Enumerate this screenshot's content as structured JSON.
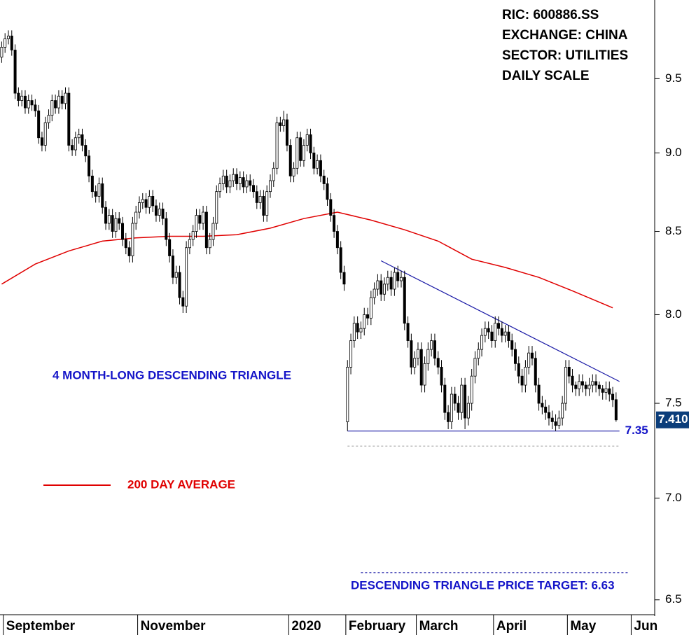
{
  "chart_data": {
    "type": "candlestick",
    "info": [
      "RIC: 600886.SS",
      "EXCHANGE: CHINA",
      "SECTOR: UTILITIES",
      "DAILY SCALE"
    ],
    "annotations": [
      "4 MONTH-LONG DESCENDING TRIANGLE",
      "DESCENDING TRIANGLE PRICE TARGET: 6.63"
    ],
    "log_scale": true,
    "ylim": [
      6.43,
      10.06
    ],
    "yticks": [
      6.5,
      {
        "value": 7,
        "label": "7.0"
      },
      7.5,
      {
        "value": 8,
        "label": "8.0"
      },
      8.5,
      {
        "value": 9,
        "label": "9.0"
      },
      9.5
    ],
    "xlim": [
      -0.5,
      194.5
    ],
    "xticks": [
      {
        "value": 0.5,
        "label": "September"
      },
      {
        "value": 40.5,
        "label": "November"
      },
      {
        "value": 85.5,
        "label": "2020"
      },
      {
        "value": 102.5,
        "label": "February"
      },
      {
        "value": 123.5,
        "label": "March"
      },
      {
        "value": 146.5,
        "label": "April"
      },
      {
        "value": 168.5,
        "label": "May"
      },
      {
        "value": 187.5,
        "label": "Jun"
      }
    ],
    "up_color": "#ffffff",
    "down_color": "#000000",
    "open": [
      9.65,
      9.72,
      9.78,
      9.8,
      9.7,
      9.4,
      9.35,
      9.38,
      9.3,
      9.35,
      9.32,
      9.28,
      9.1,
      9.05,
      9.2,
      9.25,
      9.35,
      9.3,
      9.38,
      9.33,
      9.4,
      9.05,
      9.02,
      9.1,
      9.12,
      9.05,
      8.98,
      8.85,
      8.75,
      8.72,
      8.8,
      8.65,
      8.55,
      8.6,
      8.5,
      8.58,
      8.55,
      8.45,
      8.4,
      8.35,
      8.55,
      8.62,
      8.68,
      8.7,
      8.65,
      8.72,
      8.66,
      8.6,
      8.64,
      8.58,
      8.45,
      8.35,
      8.22,
      8.25,
      8.1,
      8.05,
      8.4,
      8.45,
      8.5,
      8.6,
      8.55,
      8.62,
      8.4,
      8.45,
      8.55,
      8.75,
      8.8,
      8.85,
      8.78,
      8.82,
      8.86,
      8.8,
      8.84,
      8.78,
      8.82,
      8.79,
      8.75,
      8.68,
      8.72,
      8.6,
      8.75,
      8.82,
      8.9,
      9.2,
      9.18,
      9.22,
      9.05,
      8.85,
      8.9,
      9.1,
      8.95,
      9.05,
      9.12,
      9.0,
      8.9,
      8.95,
      8.85,
      8.8,
      8.7,
      8.6,
      8.5,
      8.4,
      8.25,
      7.4,
      7.7,
      7.85,
      7.95,
      7.9,
      7.92,
      8.0,
      7.98,
      8.1,
      8.15,
      8.2,
      8.12,
      8.18,
      8.22,
      8.15,
      8.25,
      8.2,
      8.22,
      7.95,
      7.85,
      7.7,
      7.75,
      7.8,
      7.6,
      7.72,
      7.8,
      7.85,
      7.75,
      7.7,
      7.6,
      7.45,
      7.4,
      7.55,
      7.5,
      7.45,
      7.6,
      7.42,
      7.5,
      7.65,
      7.75,
      7.8,
      7.88,
      7.92,
      7.9,
      7.85,
      7.95,
      7.92,
      7.88,
      7.9,
      7.85,
      7.8,
      7.72,
      7.65,
      7.6,
      7.7,
      7.78,
      7.75,
      7.6,
      7.5,
      7.48,
      7.45,
      7.42,
      7.4,
      7.38,
      7.42,
      7.5,
      7.7,
      7.65,
      7.6,
      7.58,
      7.62,
      7.6,
      7.58,
      7.6,
      7.62,
      7.6,
      7.58,
      7.56,
      7.58,
      7.55,
      7.52
    ],
    "high": [
      9.76,
      9.82,
      9.84,
      9.84,
      9.74,
      9.44,
      9.42,
      9.42,
      9.39,
      9.39,
      9.36,
      9.32,
      9.14,
      9.24,
      9.29,
      9.39,
      9.39,
      9.42,
      9.42,
      9.44,
      9.44,
      9.09,
      9.14,
      9.16,
      9.16,
      9.09,
      9.02,
      8.89,
      8.79,
      8.84,
      8.84,
      8.69,
      8.64,
      8.64,
      8.62,
      8.62,
      8.59,
      8.49,
      8.44,
      8.59,
      8.66,
      8.72,
      8.74,
      8.74,
      8.76,
      8.76,
      8.7,
      8.68,
      8.68,
      8.62,
      8.49,
      8.39,
      8.29,
      8.29,
      8.14,
      8.44,
      8.49,
      8.54,
      8.64,
      8.64,
      8.66,
      8.66,
      8.49,
      8.59,
      8.79,
      8.84,
      8.89,
      8.89,
      8.86,
      8.9,
      8.9,
      8.88,
      8.88,
      8.86,
      8.86,
      8.83,
      8.79,
      8.76,
      8.76,
      8.79,
      8.86,
      8.94,
      9.24,
      9.24,
      9.28,
      9.26,
      9.09,
      8.94,
      9.14,
      9.14,
      9.09,
      9.16,
      9.16,
      9.04,
      8.99,
      8.99,
      8.89,
      8.84,
      8.74,
      8.64,
      8.54,
      8.44,
      8.29,
      7.74,
      7.89,
      7.99,
      7.99,
      7.96,
      8.04,
      8.04,
      8.14,
      8.19,
      8.24,
      8.24,
      8.22,
      8.26,
      8.26,
      8.28,
      8.29,
      8.26,
      8.26,
      7.99,
      7.89,
      7.79,
      7.84,
      7.84,
      7.76,
      7.84,
      7.89,
      7.89,
      7.79,
      7.74,
      7.64,
      7.49,
      7.59,
      7.59,
      7.54,
      7.64,
      7.64,
      7.54,
      7.69,
      7.79,
      7.84,
      7.92,
      7.96,
      7.96,
      7.94,
      7.99,
      7.99,
      7.96,
      7.94,
      7.94,
      7.89,
      7.84,
      7.76,
      7.69,
      7.74,
      7.82,
      7.82,
      7.79,
      7.64,
      7.54,
      7.52,
      7.49,
      7.46,
      7.44,
      7.46,
      7.54,
      7.74,
      7.74,
      7.69,
      7.62,
      7.66,
      7.66,
      7.62,
      7.64,
      7.66,
      7.66,
      7.62,
      7.6,
      7.62,
      7.62,
      7.59,
      7.56
    ],
    "low": [
      9.61,
      9.68,
      9.74,
      9.66,
      9.36,
      9.31,
      9.31,
      9.26,
      9.26,
      9.28,
      9.24,
      9.06,
      9.01,
      9.01,
      9.16,
      9.21,
      9.26,
      9.26,
      9.29,
      9.29,
      9.01,
      8.98,
      8.98,
      9.06,
      9.01,
      8.94,
      8.81,
      8.71,
      8.68,
      8.68,
      8.61,
      8.51,
      8.51,
      8.46,
      8.46,
      8.51,
      8.41,
      8.36,
      8.31,
      8.31,
      8.51,
      8.58,
      8.64,
      8.61,
      8.61,
      8.62,
      8.56,
      8.56,
      8.54,
      8.41,
      8.31,
      8.18,
      8.18,
      8.06,
      8.01,
      8.01,
      8.36,
      8.41,
      8.46,
      8.51,
      8.51,
      8.36,
      8.36,
      8.41,
      8.51,
      8.71,
      8.76,
      8.74,
      8.74,
      8.78,
      8.76,
      8.76,
      8.74,
      8.74,
      8.75,
      8.71,
      8.64,
      8.64,
      8.56,
      8.56,
      8.71,
      8.78,
      8.86,
      9.14,
      9.14,
      9.01,
      8.81,
      8.81,
      8.86,
      8.91,
      8.91,
      9.01,
      8.96,
      8.86,
      8.86,
      8.81,
      8.76,
      8.66,
      8.56,
      8.46,
      8.36,
      8.21,
      8.14,
      7.35,
      7.66,
      7.81,
      7.86,
      7.86,
      7.88,
      7.94,
      7.94,
      8.06,
      8.11,
      8.08,
      8.08,
      8.14,
      8.11,
      8.11,
      8.16,
      8.16,
      7.91,
      7.81,
      7.66,
      7.66,
      7.71,
      7.56,
      7.56,
      7.68,
      7.76,
      7.71,
      7.66,
      7.56,
      7.41,
      7.36,
      7.36,
      7.46,
      7.41,
      7.41,
      7.36,
      7.38,
      7.46,
      7.61,
      7.71,
      7.76,
      7.84,
      7.86,
      7.81,
      7.81,
      7.88,
      7.84,
      7.84,
      7.81,
      7.76,
      7.68,
      7.61,
      7.56,
      7.56,
      7.66,
      7.71,
      7.56,
      7.46,
      7.44,
      7.41,
      7.38,
      7.36,
      7.35,
      7.36,
      7.38,
      7.46,
      7.61,
      7.56,
      7.54,
      7.54,
      7.56,
      7.54,
      7.54,
      7.56,
      7.56,
      7.54,
      7.52,
      7.52,
      7.51,
      7.48,
      7.4
    ],
    "close": [
      9.72,
      9.78,
      9.8,
      9.7,
      9.4,
      9.35,
      9.38,
      9.3,
      9.35,
      9.32,
      9.28,
      9.1,
      9.05,
      9.2,
      9.25,
      9.35,
      9.3,
      9.38,
      9.33,
      9.4,
      9.05,
      9.02,
      9.1,
      9.12,
      9.05,
      8.98,
      8.85,
      8.75,
      8.72,
      8.8,
      8.65,
      8.55,
      8.6,
      8.5,
      8.58,
      8.55,
      8.45,
      8.4,
      8.35,
      8.55,
      8.62,
      8.68,
      8.7,
      8.65,
      8.72,
      8.66,
      8.6,
      8.64,
      8.58,
      8.45,
      8.35,
      8.22,
      8.25,
      8.1,
      8.05,
      8.4,
      8.45,
      8.5,
      8.6,
      8.55,
      8.62,
      8.4,
      8.45,
      8.55,
      8.75,
      8.8,
      8.85,
      8.78,
      8.82,
      8.86,
      8.8,
      8.84,
      8.78,
      8.82,
      8.79,
      8.75,
      8.68,
      8.72,
      8.6,
      8.75,
      8.82,
      8.9,
      9.2,
      9.18,
      9.22,
      9.05,
      8.85,
      8.9,
      9.1,
      8.95,
      9.05,
      9.12,
      9.0,
      8.9,
      8.95,
      8.85,
      8.8,
      8.7,
      8.6,
      8.5,
      8.4,
      8.25,
      8.18,
      7.7,
      7.85,
      7.95,
      7.9,
      7.92,
      8.0,
      7.98,
      8.1,
      8.15,
      8.2,
      8.12,
      8.18,
      8.22,
      8.15,
      8.25,
      8.2,
      8.22,
      7.95,
      7.85,
      7.7,
      7.75,
      7.8,
      7.6,
      7.72,
      7.8,
      7.85,
      7.75,
      7.7,
      7.6,
      7.45,
      7.4,
      7.55,
      7.5,
      7.45,
      7.6,
      7.42,
      7.5,
      7.65,
      7.75,
      7.8,
      7.88,
      7.92,
      7.9,
      7.85,
      7.95,
      7.92,
      7.88,
      7.9,
      7.85,
      7.8,
      7.72,
      7.65,
      7.6,
      7.7,
      7.78,
      7.75,
      7.6,
      7.5,
      7.48,
      7.45,
      7.42,
      7.4,
      7.38,
      7.42,
      7.5,
      7.7,
      7.65,
      7.6,
      7.58,
      7.62,
      7.6,
      7.58,
      7.6,
      7.62,
      7.6,
      7.58,
      7.56,
      7.58,
      7.55,
      7.52,
      7.41
    ],
    "ma": {
      "name": "200 DAY AVERAGE",
      "color": "#e00000",
      "x": [
        0,
        10,
        20,
        30,
        40,
        50,
        60,
        70,
        80,
        90,
        100,
        110,
        120,
        130,
        140,
        150,
        160,
        170,
        182
      ],
      "values": [
        8.18,
        8.3,
        8.38,
        8.44,
        8.46,
        8.47,
        8.47,
        8.48,
        8.52,
        8.58,
        8.62,
        8.57,
        8.51,
        8.44,
        8.33,
        8.28,
        8.22,
        8.14,
        8.04
      ]
    },
    "trendlines": [
      {
        "x": [
          113,
          184
        ],
        "values": [
          8.32,
          7.62
        ],
        "color": "#1a1aa6"
      },
      {
        "x": [
          103,
          184
        ],
        "values": [
          7.35,
          7.35
        ],
        "color": "#1a1aa6"
      },
      {
        "x": [
          103,
          184
        ],
        "values": [
          7.27,
          7.27
        ],
        "color": "#aaaaaa",
        "dashed": true
      },
      {
        "x": [
          107,
          187
        ],
        "values": [
          6.63,
          6.63
        ],
        "color": "#1a1aa6",
        "dashed": true
      }
    ],
    "last_price": {
      "value": 7.41,
      "label": "7.410",
      "color": "#0b3d7a"
    }
  }
}
